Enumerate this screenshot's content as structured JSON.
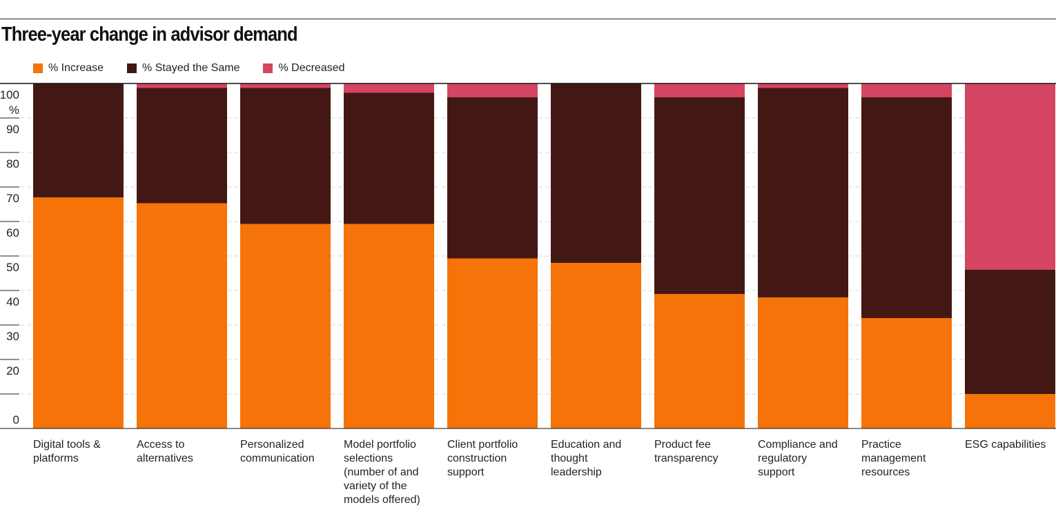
{
  "chart_data": {
    "type": "bar",
    "stacked": true,
    "title": "Three-year change in advisor demand",
    "unit_label": "%",
    "ylim": [
      0,
      100
    ],
    "yticks": [
      0,
      20,
      30,
      40,
      50,
      60,
      70,
      80,
      90,
      100
    ],
    "grid": true,
    "legend_position": "top-left",
    "categories": [
      [
        "Digital tools &",
        "platforms"
      ],
      [
        "Access to",
        "alternatives"
      ],
      [
        "Personalized",
        "communication"
      ],
      [
        "Model portfolio",
        "selections",
        "(number of and",
        "variety of the",
        "models offered)"
      ],
      [
        "Client portfolio",
        "construction",
        "support"
      ],
      [
        "Education and",
        "thought",
        "leadership"
      ],
      [
        "Product fee",
        "transparency"
      ],
      [
        "Compliance and",
        "regulatory",
        "support"
      ],
      [
        "Practice",
        "management",
        "resources"
      ],
      [
        "ESG capabilities"
      ]
    ],
    "series": [
      {
        "name": "% Increase",
        "color": "#f57308",
        "values": [
          67,
          65.3,
          59.3,
          59.3,
          49.3,
          48,
          39,
          38,
          32,
          10
        ]
      },
      {
        "name": "% Stayed the Same",
        "color": "#431814",
        "values": [
          33,
          33.4,
          39.4,
          38,
          46.7,
          52,
          57,
          60.7,
          64,
          36
        ]
      },
      {
        "name": "% Decreased",
        "color": "#d34560",
        "values": [
          0,
          1.3,
          1.3,
          2.7,
          4,
          0,
          4,
          1.3,
          4,
          54
        ]
      }
    ]
  }
}
